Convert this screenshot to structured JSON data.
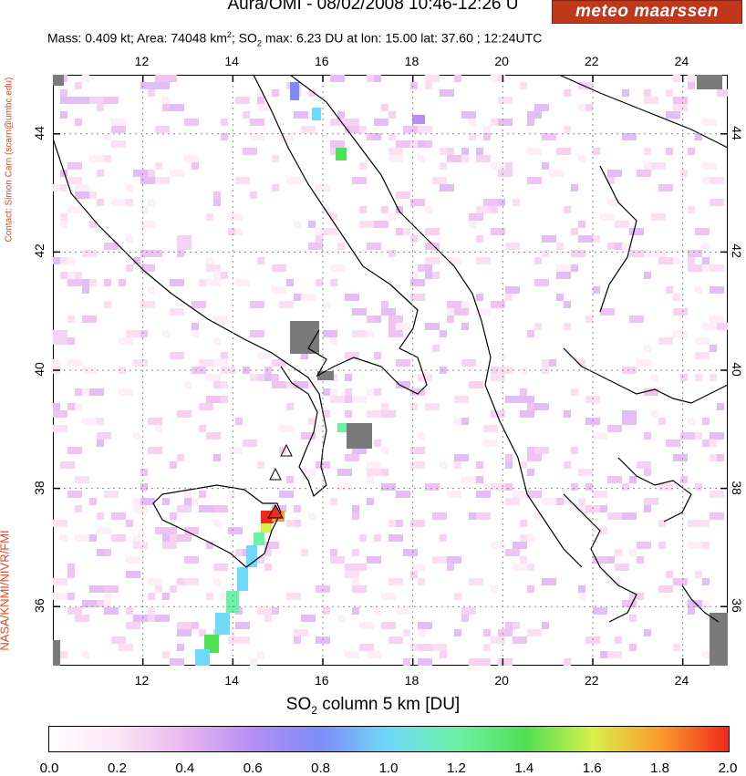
{
  "header": {
    "title": "Aura/OMI - 08/02/2008 10:46-12:26 U",
    "subtitle_pre": "Mass: 0.409 kt; Area: 74048 km",
    "subtitle_sup": "2",
    "subtitle_mid": "; SO",
    "subtitle_sub": "2",
    "subtitle_post": " max: 6.23 DU at lon: 15.00 lat: 37.60 ; 12:24UTC"
  },
  "logo": {
    "text": "meteo maarssen"
  },
  "side": {
    "contact": "Contact: Simon Carn (scarn@umbc.edu)",
    "credit": "NASA/KNMI/NIVR/FMI"
  },
  "map": {
    "lon_ticks": [
      "12",
      "14",
      "16",
      "18",
      "20",
      "22",
      "24"
    ],
    "lat_ticks": [
      "44",
      "42",
      "40",
      "38",
      "36"
    ],
    "lon_range": [
      10,
      25
    ],
    "lat_range": [
      35,
      45
    ]
  },
  "colorbar": {
    "title_pre": "SO",
    "title_sub": "2",
    "title_post": " column 5 km [DU]",
    "labels": [
      "0.0",
      "0.2",
      "0.4",
      "0.6",
      "0.8",
      "1.0",
      "1.2",
      "1.4",
      "1.6",
      "1.8",
      "2.0"
    ],
    "range": [
      0,
      2
    ],
    "colors": [
      "#ffffff",
      "#fbe6f4",
      "#e8b6f0",
      "#b48ef3",
      "#7d8cf8",
      "#6fd9f8",
      "#6bf2a6",
      "#4fe055",
      "#d8f04a",
      "#fb9a2c",
      "#ee2a1a"
    ]
  }
}
